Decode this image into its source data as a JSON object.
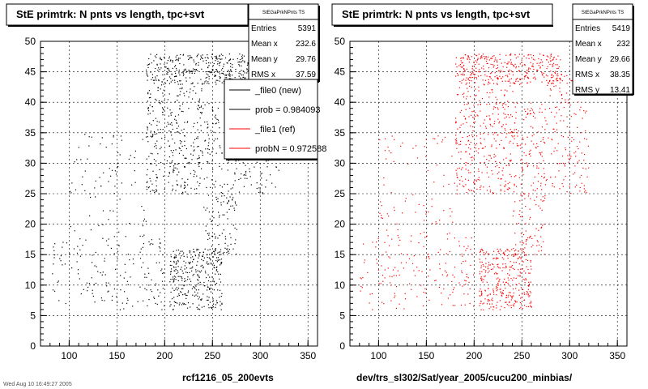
{
  "chart_data": [
    {
      "type": "scatter",
      "title": "StE primtrk: N pnts vs length, tpc+svt",
      "xlim": [
        70,
        360
      ],
      "ylim": [
        0,
        50
      ],
      "xticks": [
        "100",
        "150",
        "200",
        "250",
        "300",
        "350"
      ],
      "yticks": [
        "0",
        "5",
        "10",
        "15",
        "20",
        "25",
        "30",
        "35",
        "40",
        "45",
        "50"
      ],
      "grid": true,
      "color": "#000000",
      "footer": "rcf1216_05_200evts",
      "corner_text": "Wed Aug 10 16:49:27 2005",
      "stats": {
        "header": "StEGaPrkNPnts TS",
        "rows": [
          {
            "label": "Entries",
            "value": "5391"
          },
          {
            "label": "Mean x",
            "value": "232.6"
          },
          {
            "label": "Mean y",
            "value": "29.76"
          },
          {
            "label": "RMS x",
            "value": "37.59"
          }
        ]
      },
      "legend": {
        "placement": "top-right",
        "entries": [
          {
            "label": "_file0 (new)",
            "color": "#000000"
          },
          {
            "label": "prob = 0.984093",
            "color": "#000000"
          },
          {
            "label": "_file1 (ref)",
            "color": "#ff0000"
          },
          {
            "label": "probN = 0.972588",
            "color": "#ff0000"
          }
        ]
      },
      "density_clusters": [
        {
          "x": [
            180,
            290
          ],
          "y": [
            43,
            48
          ],
          "share": 0.22
        },
        {
          "x": [
            180,
            240
          ],
          "y": [
            25,
            43
          ],
          "share": 0.2
        },
        {
          "x": [
            240,
            275
          ],
          "y": [
            15,
            40
          ],
          "share": 0.13
        },
        {
          "x": [
            205,
            260
          ],
          "y": [
            6,
            16
          ],
          "share": 0.2
        },
        {
          "x": [
            80,
            200
          ],
          "y": [
            6,
            18
          ],
          "share": 0.1
        },
        {
          "x": [
            100,
            180
          ],
          "y": [
            18,
            35
          ],
          "share": 0.05
        },
        {
          "x": [
            275,
            320
          ],
          "y": [
            25,
            45
          ],
          "share": 0.1
        }
      ]
    },
    {
      "type": "scatter",
      "title": "StE primtrk: N pnts vs length, tpc+svt",
      "xlim": [
        70,
        360
      ],
      "ylim": [
        0,
        50
      ],
      "xticks": [
        "100",
        "150",
        "200",
        "250",
        "300",
        "350"
      ],
      "yticks": [
        "0",
        "5",
        "10",
        "15",
        "20",
        "25",
        "30",
        "35",
        "40",
        "45",
        "50"
      ],
      "grid": true,
      "color": "#ff0000",
      "footer": "dev/trs_sl302/Sat/year_2005/cucu200_minbias/",
      "stats": {
        "header": "StEGaPrkNPnts TS",
        "rows": [
          {
            "label": "Entries",
            "value": "5419"
          },
          {
            "label": "Mean x",
            "value": "232"
          },
          {
            "label": "Mean y",
            "value": "29.66"
          },
          {
            "label": "RMS x",
            "value": "38.35"
          },
          {
            "label": "RMS y",
            "value": "13.41"
          }
        ]
      },
      "density_clusters": [
        {
          "x": [
            180,
            290
          ],
          "y": [
            43,
            48
          ],
          "share": 0.22
        },
        {
          "x": [
            180,
            240
          ],
          "y": [
            25,
            43
          ],
          "share": 0.2
        },
        {
          "x": [
            240,
            275
          ],
          "y": [
            15,
            40
          ],
          "share": 0.13
        },
        {
          "x": [
            205,
            260
          ],
          "y": [
            6,
            16
          ],
          "share": 0.2
        },
        {
          "x": [
            80,
            200
          ],
          "y": [
            6,
            18
          ],
          "share": 0.1
        },
        {
          "x": [
            100,
            180
          ],
          "y": [
            18,
            35
          ],
          "share": 0.05
        },
        {
          "x": [
            275,
            320
          ],
          "y": [
            25,
            45
          ],
          "share": 0.1
        }
      ]
    }
  ]
}
